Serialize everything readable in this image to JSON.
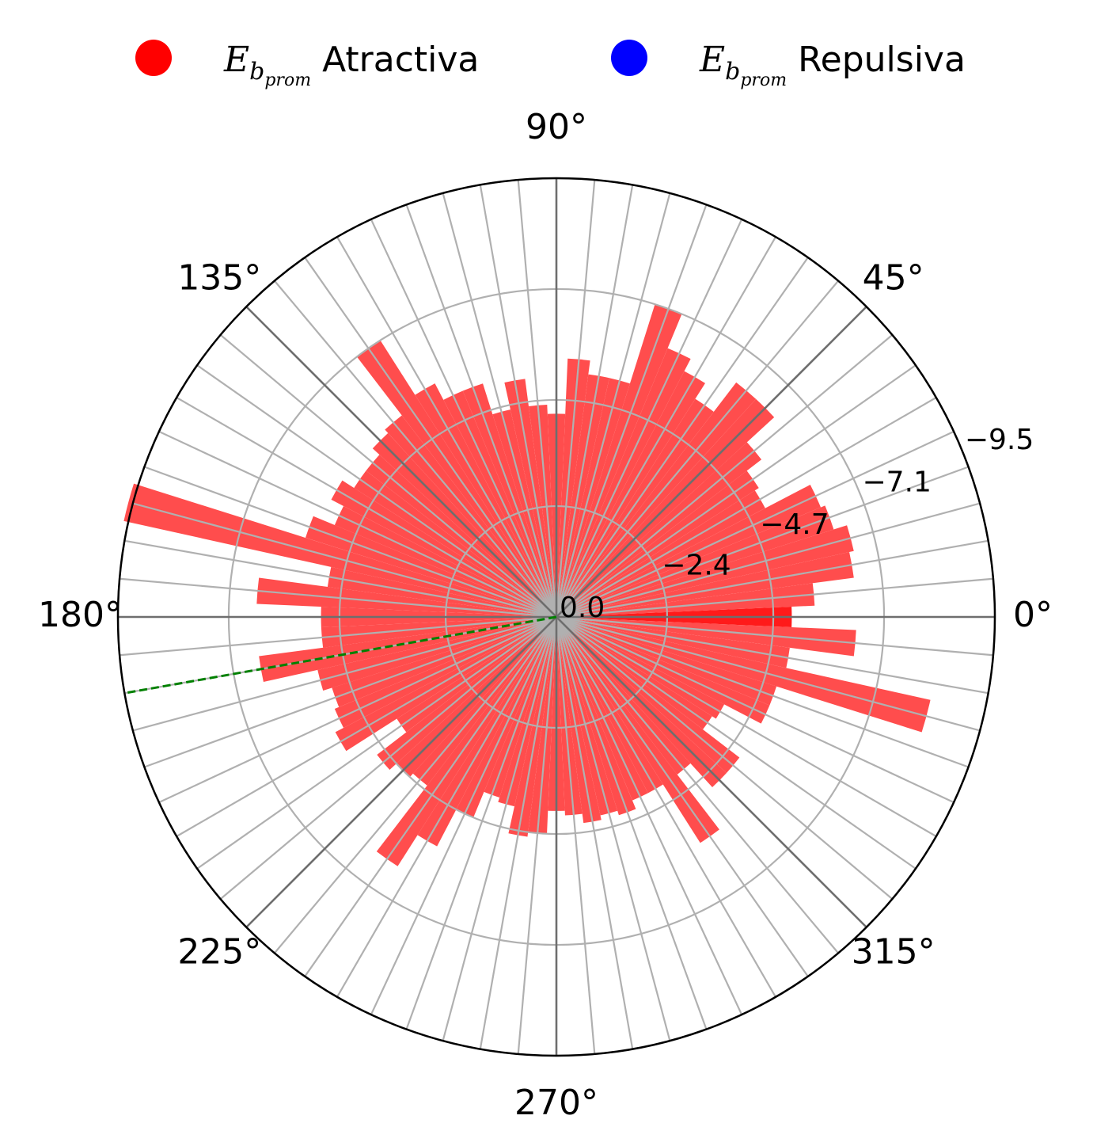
{
  "chart_data": {
    "type": "polar-bar",
    "legend": {
      "placement": "top",
      "items": [
        {
          "symbol": "E",
          "sub": "b",
          "subsub": "prom",
          "text": "Atractiva",
          "color": "#ff0000"
        },
        {
          "symbol": "E",
          "sub": "b",
          "subsub": "prom",
          "text": "Repulsiva",
          "color": "#0000ff"
        }
      ]
    },
    "angle_ticks": [
      "0°",
      "45°",
      "90°",
      "135°",
      "180°",
      "225°",
      "270°",
      "315°"
    ],
    "radial_ticks": [
      "0.0",
      "−2.4",
      "−4.7",
      "−7.1",
      "−9.5"
    ],
    "radial_tick_values": [
      0.0,
      -2.4,
      -4.7,
      -7.1,
      -9.5
    ],
    "rlim": [
      0,
      -9.5
    ],
    "bin_width_deg": 5,
    "bar_color": "#ff4d4d",
    "highlight_bar_color": "#ff1a1a",
    "reference_line": {
      "angle_deg": 190,
      "color": "#008000",
      "style": "dashed"
    },
    "series": [
      {
        "name": "Atractiva",
        "angles_deg": [
          0,
          5,
          10,
          15,
          20,
          25,
          30,
          35,
          40,
          45,
          50,
          55,
          60,
          65,
          70,
          75,
          80,
          85,
          90,
          95,
          100,
          105,
          110,
          115,
          120,
          125,
          130,
          135,
          140,
          145,
          150,
          155,
          160,
          165,
          170,
          175,
          180,
          185,
          190,
          195,
          200,
          205,
          210,
          215,
          220,
          225,
          230,
          235,
          240,
          245,
          250,
          255,
          260,
          265,
          270,
          275,
          280,
          285,
          290,
          295,
          300,
          305,
          310,
          315,
          320,
          325,
          330,
          335,
          340,
          345,
          350,
          355
        ],
        "values": [
          -5.1,
          -5.6,
          -6.5,
          -6.6,
          -6.3,
          -6.2,
          -5.1,
          -5.2,
          -5.6,
          -6.4,
          -6.4,
          -5.6,
          -6.0,
          -6.3,
          -7.1,
          -5.3,
          -5.3,
          -5.6,
          -4.4,
          -4.6,
          -5.2,
          -4.6,
          -5.3,
          -5.3,
          -5.7,
          -7.1,
          -5.5,
          -5.4,
          -5.2,
          -5.2,
          -5.5,
          -5.2,
          -5.7,
          -9.6,
          -5.0,
          -6.5,
          -5.1,
          -5.1,
          -6.5,
          -5.3,
          -5.1,
          -5.2,
          -5.4,
          -4.1,
          -4.9,
          -4.7,
          -4.6,
          -6.4,
          -5.6,
          -4.7,
          -4.1,
          -4.2,
          -4.8,
          -4.7,
          -4.2,
          -4.3,
          -4.5,
          -4.4,
          -4.5,
          -4.3,
          -4.3,
          -5.8,
          -4.3,
          -5.0,
          -5.0,
          -4.0,
          -4.1,
          -5.0,
          -5.0,
          -8.3,
          -5.1,
          -6.5
        ]
      }
    ]
  }
}
